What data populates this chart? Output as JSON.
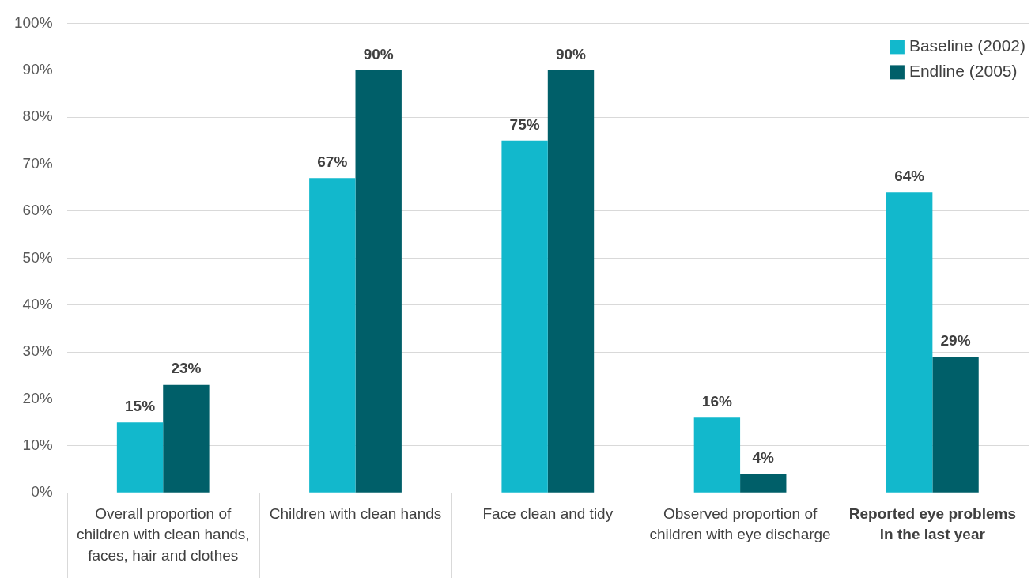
{
  "chart_data": {
    "type": "bar",
    "categories": [
      "Overall proportion of children with clean hands, faces, hair and clothes",
      "Children with clean hands",
      "Face clean and tidy",
      "Observed proportion of children with eye discharge",
      "Reported eye problems in the last year"
    ],
    "series": [
      {
        "name": "Baseline (2002)",
        "color": "#12b8cc",
        "values": [
          15,
          67,
          75,
          16,
          64
        ],
        "value_labels": [
          "15%",
          "67%",
          "75%",
          "16%",
          "64%"
        ]
      },
      {
        "name": "Endline (2005)",
        "color": "#005f69",
        "values": [
          23,
          90,
          90,
          4,
          29
        ],
        "value_labels": [
          "23%",
          "90%",
          "90%",
          "4%",
          "29%"
        ]
      }
    ],
    "ylim": [
      0,
      100
    ],
    "yticks": [
      {
        "value": 0,
        "label": "0%"
      },
      {
        "value": 10,
        "label": "10%"
      },
      {
        "value": 20,
        "label": "20%"
      },
      {
        "value": 30,
        "label": "30%"
      },
      {
        "value": 40,
        "label": "40%"
      },
      {
        "value": 50,
        "label": "50%"
      },
      {
        "value": 60,
        "label": "60%"
      },
      {
        "value": 70,
        "label": "70%"
      },
      {
        "value": 80,
        "label": "80%"
      },
      {
        "value": 90,
        "label": "90%"
      },
      {
        "value": 100,
        "label": "100%"
      }
    ],
    "grid": "y",
    "legend": "top right"
  }
}
